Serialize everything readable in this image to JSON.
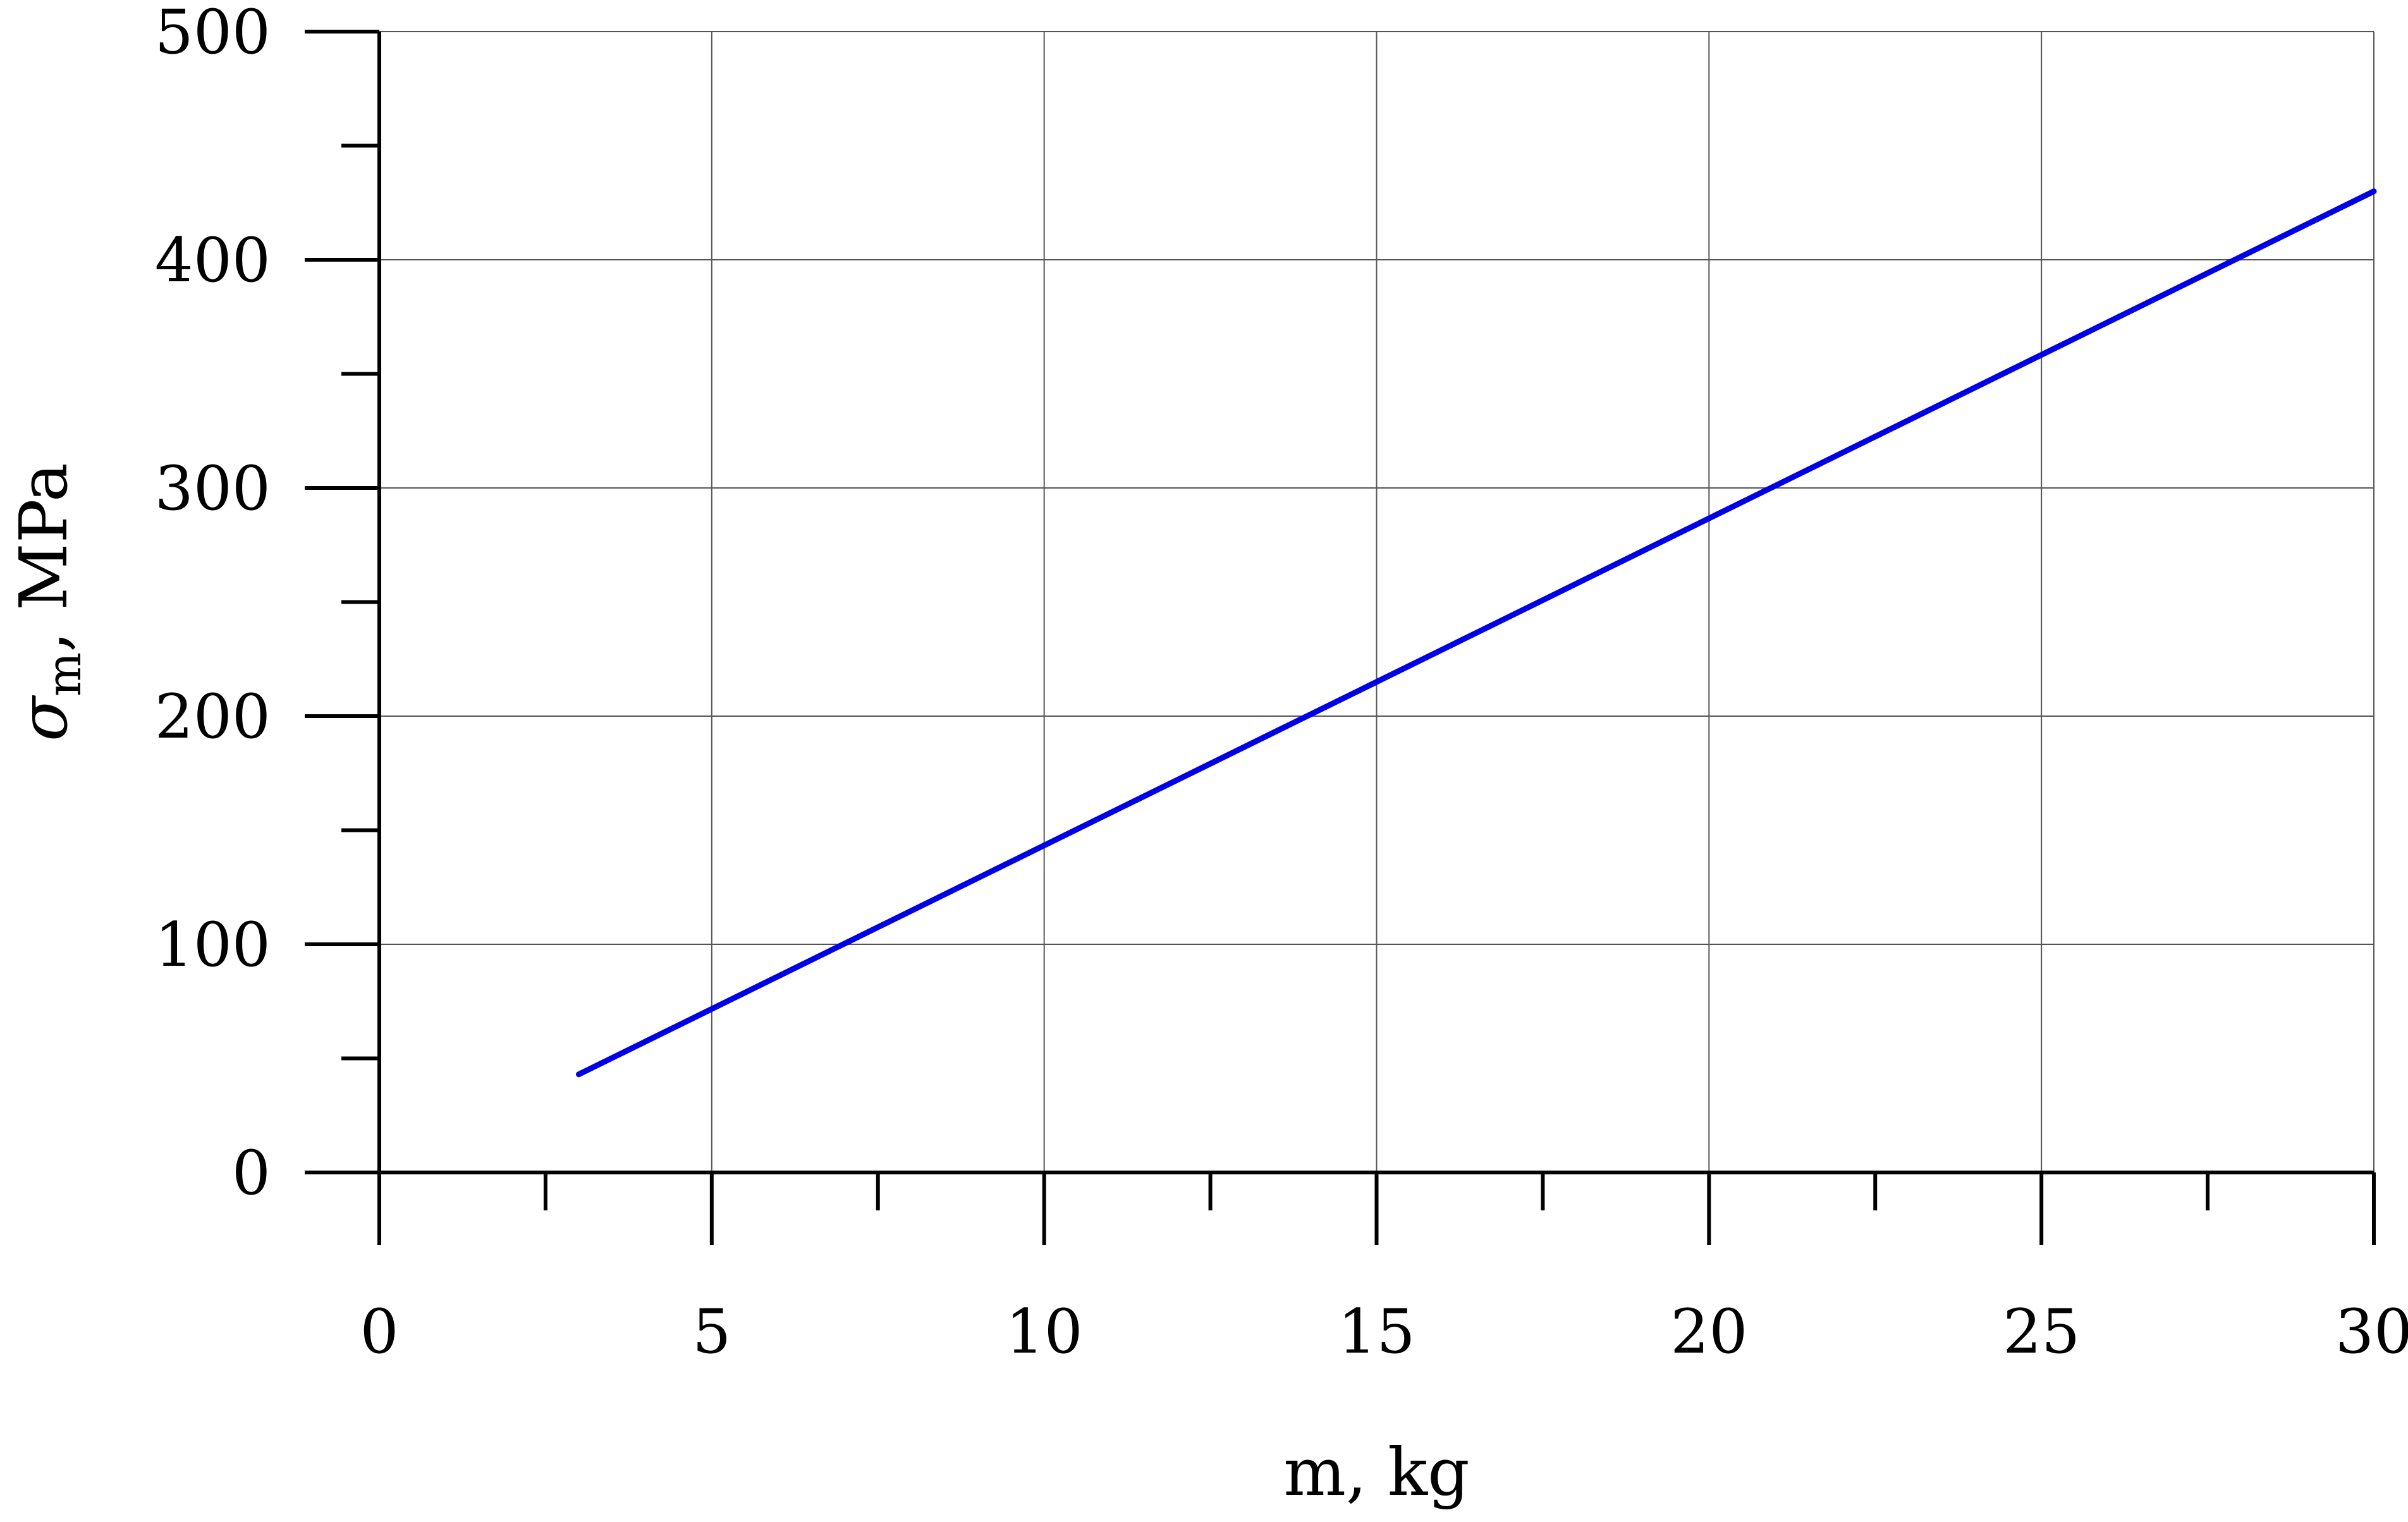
{
  "chart_data": {
    "type": "line",
    "title": "",
    "xlabel": "m, kg",
    "ylabel": {
      "symbol": "σ",
      "subscript": "m",
      "unit": ", MPa"
    },
    "xlim": [
      0,
      30
    ],
    "ylim": [
      0,
      500
    ],
    "x_ticks": [
      "0",
      "5",
      "10",
      "15",
      "20",
      "25",
      "30"
    ],
    "y_ticks": [
      "0",
      "100",
      "200",
      "300",
      "400",
      "500"
    ],
    "x_minor_step": 2.5,
    "y_minor_step": 50,
    "grid": true,
    "series": [
      {
        "color": "#0000e6",
        "x": [
          3,
          30
        ],
        "y": [
          43,
          430
        ]
      }
    ]
  }
}
